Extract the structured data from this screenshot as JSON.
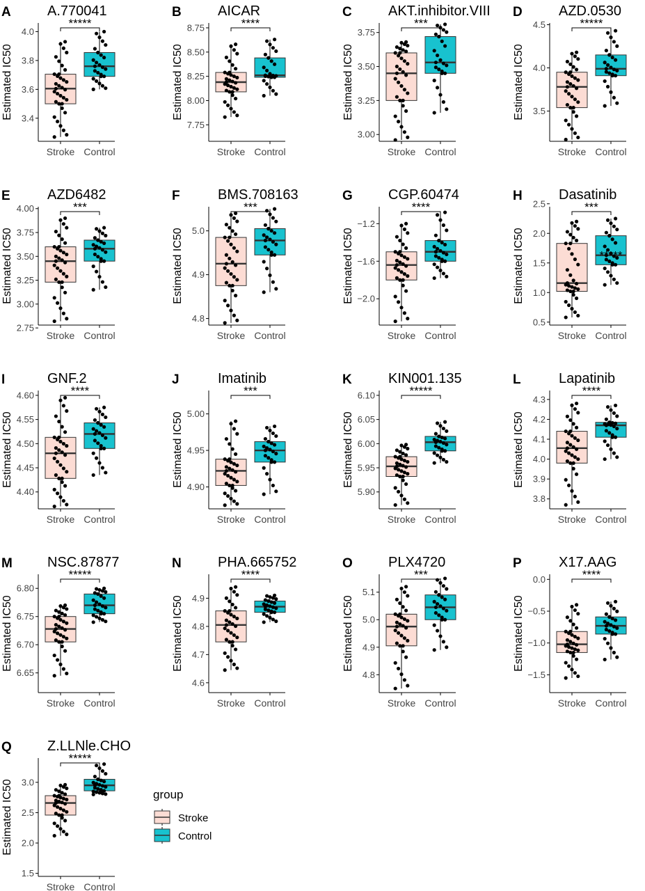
{
  "figure": {
    "x_categories": [
      "Stroke",
      "Control"
    ],
    "y_axis_label": "Estimated IC50",
    "legend": {
      "title": "group",
      "entries": [
        "Stroke",
        "Control"
      ]
    },
    "colors": {
      "Stroke": "#fcdcd4",
      "Control": "#18c2cf",
      "points": "#000000"
    }
  },
  "chart_data": [
    {
      "type": "box",
      "letter": "A",
      "title": "A.770041",
      "xlabel": "",
      "ylabel": "Estimated IC50",
      "categories": [
        "Stroke",
        "Control"
      ],
      "ylim": [
        3.24,
        4.06
      ],
      "yticks": [
        3.4,
        3.6,
        3.8,
        4.0
      ],
      "ytick_labels": [
        "3.4",
        "3.6",
        "3.8",
        "4.0"
      ],
      "significance": "*****",
      "boxes": [
        {
          "group": "Stroke",
          "q1": 3.5,
          "median": 3.605,
          "q3": 3.705,
          "whisker_low": 3.27,
          "whisker_high": 3.93
        },
        {
          "group": "Control",
          "q1": 3.69,
          "median": 3.76,
          "q3": 3.855,
          "whisker_low": 3.6,
          "whisker_high": 4.0
        }
      ]
    },
    {
      "type": "box",
      "letter": "B",
      "title": "AICAR",
      "xlabel": "",
      "ylabel": "Estimated IC50",
      "categories": [
        "Stroke",
        "Control"
      ],
      "ylim": [
        7.58,
        8.8
      ],
      "yticks": [
        7.75,
        8.0,
        8.25,
        8.5,
        8.75
      ],
      "ytick_labels": [
        "7.75",
        "8.00",
        "8.25",
        "8.50",
        "8.75"
      ],
      "significance": "****",
      "boxes": [
        {
          "group": "Stroke",
          "q1": 8.09,
          "median": 8.19,
          "q3": 8.29,
          "whisker_low": 7.83,
          "whisker_high": 8.58
        },
        {
          "group": "Control",
          "q1": 8.24,
          "median": 8.26,
          "q3": 8.44,
          "whisker_low": 8.05,
          "whisker_high": 8.63
        }
      ]
    },
    {
      "type": "box",
      "letter": "C",
      "title": "AKT.inhibitor.VIII",
      "xlabel": "",
      "ylabel": "Estimated IC50",
      "categories": [
        "Stroke",
        "Control"
      ],
      "ylim": [
        2.95,
        3.82
      ],
      "yticks": [
        3.0,
        3.25,
        3.5,
        3.75
      ],
      "ytick_labels": [
        "3.00",
        "3.25",
        "3.50",
        "3.75"
      ],
      "significance": "***",
      "boxes": [
        {
          "group": "Stroke",
          "q1": 3.25,
          "median": 3.45,
          "q3": 3.6,
          "whisker_low": 2.96,
          "whisker_high": 3.68
        },
        {
          "group": "Control",
          "q1": 3.45,
          "median": 3.53,
          "q3": 3.72,
          "whisker_low": 3.16,
          "whisker_high": 3.81
        }
      ]
    },
    {
      "type": "box",
      "letter": "D",
      "title": "AZD.0530",
      "xlabel": "",
      "ylabel": "Estimated IC50",
      "categories": [
        "Stroke",
        "Control"
      ],
      "ylim": [
        3.15,
        4.52
      ],
      "yticks": [
        3.5,
        4.0,
        4.5
      ],
      "ytick_labels": [
        "3.5",
        "4.0",
        "4.5"
      ],
      "significance": "*****",
      "boxes": [
        {
          "group": "Stroke",
          "q1": 3.54,
          "median": 3.78,
          "q3": 3.95,
          "whisker_low": 3.17,
          "whisker_high": 4.18
        },
        {
          "group": "Control",
          "q1": 3.91,
          "median": 3.99,
          "q3": 4.15,
          "whisker_low": 3.56,
          "whisker_high": 4.43
        }
      ]
    },
    {
      "type": "box",
      "letter": "E",
      "title": "AZD6482",
      "xlabel": "",
      "ylabel": "Estimated IC50",
      "categories": [
        "Stroke",
        "Control"
      ],
      "ylim": [
        2.78,
        4.02
      ],
      "yticks": [
        2.75,
        3.0,
        3.25,
        3.5,
        3.75,
        4.0
      ],
      "ytick_labels": [
        "2.75",
        "3.00",
        "3.25",
        "3.50",
        "3.75",
        "4.00"
      ],
      "significance": "***",
      "boxes": [
        {
          "group": "Stroke",
          "q1": 3.23,
          "median": 3.45,
          "q3": 3.6,
          "whisker_low": 2.82,
          "whisker_high": 3.9
        },
        {
          "group": "Control",
          "q1": 3.45,
          "median": 3.58,
          "q3": 3.67,
          "whisker_low": 3.15,
          "whisker_high": 3.8
        }
      ]
    },
    {
      "type": "box",
      "letter": "F",
      "title": "BMS.708163",
      "xlabel": "",
      "ylabel": "Estimated IC50",
      "categories": [
        "Stroke",
        "Control"
      ],
      "ylim": [
        4.785,
        5.055
      ],
      "yticks": [
        4.8,
        4.9,
        5.0
      ],
      "ytick_labels": [
        "4.8",
        "4.9",
        "5.0"
      ],
      "significance": "***",
      "boxes": [
        {
          "group": "Stroke",
          "q1": 4.875,
          "median": 4.925,
          "q3": 4.985,
          "whisker_low": 4.79,
          "whisker_high": 5.04
        },
        {
          "group": "Control",
          "q1": 4.945,
          "median": 4.978,
          "q3": 5.005,
          "whisker_low": 4.86,
          "whisker_high": 5.05
        }
      ]
    },
    {
      "type": "box",
      "letter": "G",
      "title": "CGP.60474",
      "xlabel": "",
      "ylabel": "Estimated IC50",
      "categories": [
        "Stroke",
        "Control"
      ],
      "ylim": [
        -2.28,
        -1.02
      ],
      "yticks": [
        -2.0,
        -1.6,
        -1.2
      ],
      "ytick_labels": [
        "−2.0",
        "−1.6",
        "−1.2"
      ],
      "significance": "****",
      "boxes": [
        {
          "group": "Stroke",
          "q1": -1.8,
          "median": -1.64,
          "q3": -1.5,
          "whisker_low": -2.24,
          "whisker_high": -1.2
        },
        {
          "group": "Control",
          "q1": -1.6,
          "median": -1.5,
          "q3": -1.38,
          "whisker_low": -1.78,
          "whisker_high": -1.08
        }
      ]
    },
    {
      "type": "box",
      "letter": "H",
      "title": "Dasatinib",
      "xlabel": "",
      "ylabel": "Estimated IC50",
      "categories": [
        "Stroke",
        "Control"
      ],
      "ylim": [
        0.45,
        2.45
      ],
      "yticks": [
        0.5,
        1.0,
        1.5,
        2.0,
        2.5
      ],
      "ytick_labels": [
        "0.5",
        "1.0",
        "1.5",
        "2.0",
        "2.5"
      ],
      "significance": "***",
      "extra_annotation": "*****",
      "boxes": [
        {
          "group": "Stroke",
          "q1": 1.02,
          "median": 1.16,
          "q3": 1.83,
          "whisker_low": 0.58,
          "whisker_high": 2.2
        },
        {
          "group": "Control",
          "q1": 1.47,
          "median": 1.63,
          "q3": 1.96,
          "whisker_low": 1.13,
          "whisker_high": 2.25
        }
      ]
    },
    {
      "type": "box",
      "letter": "I",
      "title": "GNF.2",
      "xlabel": "",
      "ylabel": "Estimated IC50",
      "categories": [
        "Stroke",
        "Control"
      ],
      "ylim": [
        4.365,
        4.61
      ],
      "yticks": [
        4.4,
        4.45,
        4.5,
        4.55,
        4.6
      ],
      "ytick_labels": [
        "4.40",
        "4.45",
        "4.50",
        "4.55",
        "4.60"
      ],
      "significance": "****",
      "boxes": [
        {
          "group": "Stroke",
          "q1": 4.428,
          "median": 4.48,
          "q3": 4.513,
          "whisker_low": 4.37,
          "whisker_high": 4.595
        },
        {
          "group": "Control",
          "q1": 4.49,
          "median": 4.52,
          "q3": 4.543,
          "whisker_low": 4.435,
          "whisker_high": 4.575
        }
      ]
    },
    {
      "type": "box",
      "letter": "J",
      "title": "Imatinib",
      "xlabel": "",
      "ylabel": "Estimated IC50",
      "categories": [
        "Stroke",
        "Control"
      ],
      "ylim": [
        4.87,
        5.032
      ],
      "yticks": [
        4.9,
        4.95,
        5.0
      ],
      "ytick_labels": [
        "4.90",
        "4.95",
        "5.00"
      ],
      "significance": "***",
      "boxes": [
        {
          "group": "Stroke",
          "q1": 4.902,
          "median": 4.922,
          "q3": 4.938,
          "whisker_low": 4.875,
          "whisker_high": 4.99
        },
        {
          "group": "Control",
          "q1": 4.934,
          "median": 4.95,
          "q3": 4.962,
          "whisker_low": 4.89,
          "whisker_high": 4.983
        }
      ]
    },
    {
      "type": "box",
      "letter": "K",
      "title": "KIN001.135",
      "xlabel": "",
      "ylabel": "Estimated IC50",
      "categories": [
        "Stroke",
        "Control"
      ],
      "ylim": [
        5.865,
        6.11
      ],
      "yticks": [
        5.9,
        5.95,
        6.0,
        6.05,
        6.1
      ],
      "ytick_labels": [
        "5.90",
        "5.95",
        "6.00",
        "6.05",
        "6.10"
      ],
      "significance": "*****",
      "boxes": [
        {
          "group": "Stroke",
          "q1": 5.932,
          "median": 5.953,
          "q3": 5.973,
          "whisker_low": 5.873,
          "whisker_high": 5.998
        },
        {
          "group": "Control",
          "q1": 5.985,
          "median": 6.003,
          "q3": 6.015,
          "whisker_low": 5.96,
          "whisker_high": 6.045
        }
      ]
    },
    {
      "type": "box",
      "letter": "L",
      "title": "Lapatinib",
      "xlabel": "",
      "ylabel": "Estimated IC50",
      "categories": [
        "Stroke",
        "Control"
      ],
      "ylim": [
        3.75,
        4.345
      ],
      "yticks": [
        3.8,
        3.9,
        4.0,
        4.1,
        4.2,
        4.3
      ],
      "ytick_labels": [
        "3.8",
        "3.9",
        "4.0",
        "4.1",
        "4.2",
        "4.3"
      ],
      "significance": "****",
      "boxes": [
        {
          "group": "Stroke",
          "q1": 3.98,
          "median": 4.055,
          "q3": 4.14,
          "whisker_low": 3.77,
          "whisker_high": 4.28
        },
        {
          "group": "Control",
          "q1": 4.11,
          "median": 4.17,
          "q3": 4.185,
          "whisker_low": 4.0,
          "whisker_high": 4.27
        }
      ]
    },
    {
      "type": "box",
      "letter": "M",
      "title": "NSC.87877",
      "xlabel": "",
      "ylabel": "Estimated IC50",
      "categories": [
        "Stroke",
        "Control"
      ],
      "ylim": [
        6.615,
        6.825
      ],
      "yticks": [
        6.65,
        6.7,
        6.75,
        6.8
      ],
      "ytick_labels": [
        "6.65",
        "6.70",
        "6.75",
        "6.80"
      ],
      "significance": "*****",
      "boxes": [
        {
          "group": "Stroke",
          "q1": 6.705,
          "median": 6.728,
          "q3": 6.75,
          "whisker_low": 6.645,
          "whisker_high": 6.77
        },
        {
          "group": "Control",
          "q1": 6.755,
          "median": 6.77,
          "q3": 6.79,
          "whisker_low": 6.74,
          "whisker_high": 6.8
        }
      ]
    },
    {
      "type": "box",
      "letter": "N",
      "title": "PHA.665752",
      "xlabel": "",
      "ylabel": "Estimated IC50",
      "categories": [
        "Stroke",
        "Control"
      ],
      "ylim": [
        4.565,
        4.985
      ],
      "yticks": [
        4.6,
        4.7,
        4.8,
        4.9
      ],
      "ytick_labels": [
        "4.6",
        "4.7",
        "4.8",
        "4.9"
      ],
      "significance": "****",
      "boxes": [
        {
          "group": "Stroke",
          "q1": 4.745,
          "median": 4.805,
          "q3": 4.855,
          "whisker_low": 4.645,
          "whisker_high": 4.94
        },
        {
          "group": "Control",
          "q1": 4.85,
          "median": 4.87,
          "q3": 4.89,
          "whisker_low": 4.815,
          "whisker_high": 4.91
        }
      ]
    },
    {
      "type": "box",
      "letter": "O",
      "title": "PLX4720",
      "xlabel": "",
      "ylabel": "Estimated IC50",
      "categories": [
        "Stroke",
        "Control"
      ],
      "ylim": [
        4.735,
        5.165
      ],
      "yticks": [
        4.8,
        4.9,
        5.0,
        5.1
      ],
      "ytick_labels": [
        "4.8",
        "4.9",
        "5.0",
        "5.1"
      ],
      "significance": "***",
      "boxes": [
        {
          "group": "Stroke",
          "q1": 4.905,
          "median": 4.975,
          "q3": 5.02,
          "whisker_low": 4.75,
          "whisker_high": 5.12
        },
        {
          "group": "Control",
          "q1": 5.0,
          "median": 5.045,
          "q3": 5.09,
          "whisker_low": 4.89,
          "whisker_high": 5.15
        }
      ]
    },
    {
      "type": "box",
      "letter": "P",
      "title": "X17.AAG",
      "xlabel": "",
      "ylabel": "Estimated IC50",
      "categories": [
        "Stroke",
        "Control"
      ],
      "ylim": [
        -1.78,
        0.08
      ],
      "yticks": [
        -1.5,
        -1.0,
        -0.5,
        0.0
      ],
      "ytick_labels": [
        "−1.5",
        "−1.0",
        "−0.5",
        "0.0"
      ],
      "significance": "****",
      "boxes": [
        {
          "group": "Stroke",
          "q1": -1.15,
          "median": -1.02,
          "q3": -0.82,
          "whisker_low": -1.55,
          "whisker_high": -0.4
        },
        {
          "group": "Control",
          "q1": -0.86,
          "median": -0.73,
          "q3": -0.59,
          "whisker_low": -1.26,
          "whisker_high": -0.35
        }
      ]
    },
    {
      "type": "box",
      "letter": "Q",
      "title": "Z.LLNle.CHO",
      "xlabel": "",
      "ylabel": "Estimated IC50",
      "categories": [
        "Stroke",
        "Control"
      ],
      "ylim": [
        1.45,
        3.4
      ],
      "yticks": [
        1.5,
        2.0,
        2.5,
        3.0
      ],
      "ytick_labels": [
        "1.5",
        "2.0",
        "2.5",
        "3.0"
      ],
      "significance": "*****",
      "boxes": [
        {
          "group": "Stroke",
          "q1": 2.46,
          "median": 2.66,
          "q3": 2.78,
          "whisker_low": 2.12,
          "whisker_high": 2.96
        },
        {
          "group": "Control",
          "q1": 2.86,
          "median": 2.95,
          "q3": 3.05,
          "whisker_low": 2.8,
          "whisker_high": 3.3
        }
      ]
    }
  ]
}
